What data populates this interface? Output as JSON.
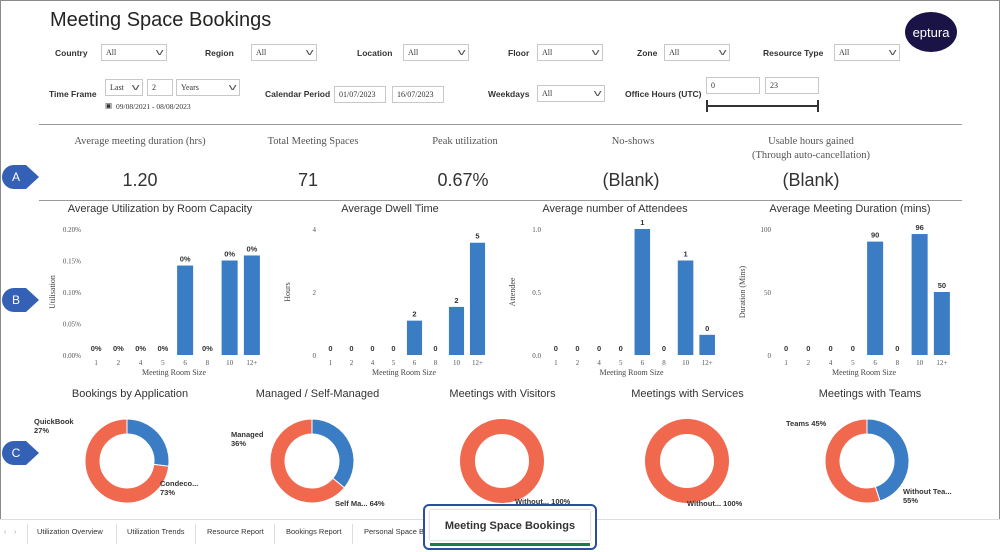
{
  "page": {
    "title": "Meeting Space Bookings",
    "logo": "eptura"
  },
  "filters": {
    "country": {
      "label": "Country",
      "value": "All"
    },
    "region": {
      "label": "Region",
      "value": "All"
    },
    "location": {
      "label": "Location",
      "value": "All"
    },
    "floor": {
      "label": "Floor",
      "value": "All"
    },
    "zone": {
      "label": "Zone",
      "value": "All"
    },
    "resource_type": {
      "label": "Resource Type",
      "value": "All"
    },
    "time_frame": {
      "label": "Time Frame",
      "mode": "Last",
      "count": "2",
      "unit": "Years",
      "range": "09/08/2021 - 08/08/2023"
    },
    "calendar_period": {
      "label": "Calendar Period",
      "start": "01/07/2023",
      "end": "16/07/2023"
    },
    "weekdays": {
      "label": "Weekdays",
      "value": "All"
    },
    "office_hours": {
      "label": "Office Hours (UTC)",
      "start": "0",
      "end": "23"
    }
  },
  "badges": {
    "a": "A",
    "b": "B",
    "c": "C"
  },
  "kpis": [
    {
      "label": "Average meeting duration (hrs)",
      "label2": "",
      "value": "1.20"
    },
    {
      "label": "Total Meeting Spaces",
      "label2": "",
      "value": "71"
    },
    {
      "label": "Peak utilization",
      "label2": "",
      "value": "0.67%"
    },
    {
      "label": "No-shows",
      "label2": "",
      "value": "(Blank)"
    },
    {
      "label": "Usable hours gained",
      "label2": "(Through auto-cancellation)",
      "value": "(Blank)"
    }
  ],
  "chart_data": [
    {
      "type": "bar",
      "title": "Average Utilization by Room Capacity",
      "xlabel": "Meeting Room Size",
      "ylabel": "Utilisation",
      "categories": [
        "1",
        "2",
        "4",
        "5",
        "6",
        "8",
        "10",
        "12+"
      ],
      "values": [
        0,
        0,
        0,
        0,
        0.142,
        0,
        0.15,
        0.158
      ],
      "data_labels": [
        "0%",
        "0%",
        "0%",
        "0%",
        "0%",
        "0%",
        "0%",
        "0%"
      ],
      "yticks": [
        "0.00%",
        "0.05%",
        "0.10%",
        "0.15%",
        "0.20%"
      ],
      "ylim": [
        0,
        0.2
      ]
    },
    {
      "type": "bar",
      "title": "Average Dwell Time",
      "xlabel": "Meeting Room Size",
      "ylabel": "Hours",
      "categories": [
        "1",
        "2",
        "4",
        "5",
        "6",
        "8",
        "10",
        "12+"
      ],
      "values": [
        0,
        0,
        0,
        0,
        1.5,
        0,
        2.1,
        4.9
      ],
      "data_labels": [
        "0",
        "0",
        "0",
        "0",
        "2",
        "0",
        "2",
        "5"
      ],
      "yticks": [
        "0",
        "2",
        "4"
      ],
      "ylim": [
        0,
        5.5
      ]
    },
    {
      "type": "bar",
      "title": "Average number of Attendees",
      "xlabel": "Meeting Room Size",
      "ylabel": "Attendee",
      "categories": [
        "1",
        "2",
        "4",
        "5",
        "6",
        "8",
        "10",
        "12+"
      ],
      "values": [
        0,
        0,
        0,
        0,
        1.0,
        0,
        0.75,
        0.16
      ],
      "data_labels": [
        "0",
        "0",
        "0",
        "0",
        "1",
        "0",
        "1",
        "0"
      ],
      "yticks": [
        "0.0",
        "0.5",
        "1.0"
      ],
      "ylim": [
        0,
        1.0
      ]
    },
    {
      "type": "bar",
      "title": "Average Meeting Duration (mins)",
      "xlabel": "Meeting Room Size",
      "ylabel": "Duration (Mins)",
      "categories": [
        "1",
        "2",
        "4",
        "5",
        "6",
        "8",
        "10",
        "12+"
      ],
      "values": [
        0,
        0,
        0,
        0,
        90,
        0,
        96,
        50
      ],
      "data_labels": [
        "0",
        "0",
        "0",
        "0",
        "90",
        "0",
        "96",
        "50"
      ],
      "yticks": [
        "0",
        "50",
        "100"
      ],
      "ylim": [
        0,
        100
      ]
    },
    {
      "type": "pie",
      "title": "Bookings by Application",
      "slices": [
        {
          "name": "QuickBook",
          "label": "QuickBook\n27%",
          "value": 27,
          "color": "#3b7dc4"
        },
        {
          "name": "Condeco",
          "label": "Condeco...\n73%",
          "value": 73,
          "color": "#f0694f"
        }
      ]
    },
    {
      "type": "pie",
      "title": "Managed / Self-Managed",
      "slices": [
        {
          "name": "Managed",
          "label": "Managed\n36%",
          "value": 36,
          "color": "#3b7dc4"
        },
        {
          "name": "Self Ma...",
          "label": "Self Ma... 64%",
          "value": 64,
          "color": "#f0694f"
        }
      ]
    },
    {
      "type": "pie",
      "title": "Meetings with Visitors",
      "slices": [
        {
          "name": "Without...",
          "label": "Without... 100%",
          "value": 100,
          "color": "#f0694f"
        }
      ]
    },
    {
      "type": "pie",
      "title": "Meetings with Services",
      "slices": [
        {
          "name": "Without...",
          "label": "Without... 100%",
          "value": 100,
          "color": "#f0694f"
        }
      ]
    },
    {
      "type": "pie",
      "title": "Meetings with Teams",
      "slices": [
        {
          "name": "Teams",
          "label": "Teams 45%",
          "value": 45,
          "color": "#3b7dc4"
        },
        {
          "name": "Without Tea...",
          "label": "Without Tea...\n55%",
          "value": 55,
          "color": "#f0694f"
        }
      ]
    }
  ],
  "tabs": {
    "items": [
      "Utilization Overview",
      "Utilization Trends",
      "Resource Report",
      "Bookings Report",
      "Personal Space Bo"
    ],
    "active": "Meeting Space Bookings"
  },
  "colors": {
    "bar": "#3b7dc4",
    "blue": "#3b7dc4",
    "orange": "#f0694f",
    "badge": "#3460b5"
  }
}
